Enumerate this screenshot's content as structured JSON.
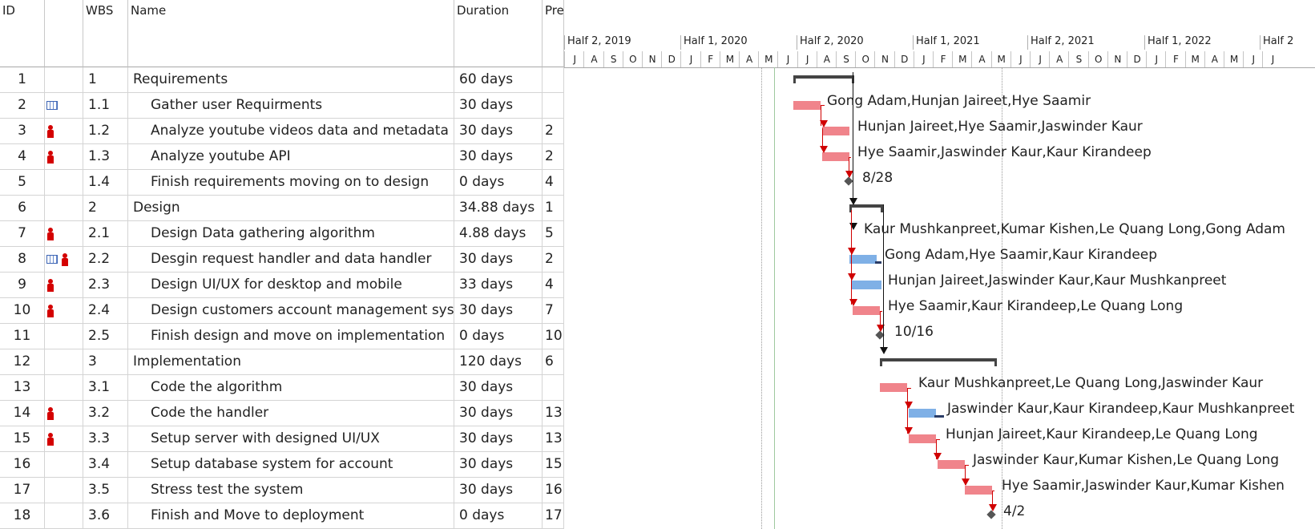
{
  "columns": {
    "id": "ID",
    "wbs": "WBS",
    "name": "Name",
    "duration": "Duration",
    "predecessors": "Pre"
  },
  "info_icon": "i",
  "timeline": {
    "halves": [
      "Half 2, 2019",
      "Half 1, 2020",
      "Half 2, 2020",
      "Half 1, 2021",
      "Half 2, 2021",
      "Half 1, 2022",
      "Half 2"
    ],
    "months": [
      "J",
      "J",
      "A",
      "S",
      "O",
      "N",
      "D",
      "J",
      "F",
      "M",
      "A",
      "M",
      "J",
      "J",
      "A",
      "S",
      "O",
      "N",
      "D",
      "J",
      "F",
      "M",
      "A",
      "M",
      "J",
      "J",
      "A",
      "S",
      "O",
      "N",
      "D",
      "J",
      "F",
      "M",
      "A",
      "M",
      "J",
      "J"
    ]
  },
  "tasks": [
    {
      "id": "1",
      "wbs": "1",
      "name": "Requirements",
      "duration": "60 days",
      "pred": "",
      "summary": true,
      "indicators": []
    },
    {
      "id": "2",
      "wbs": "1.1",
      "name": "Gather user Requirments",
      "duration": "30 days",
      "pred": "",
      "summary": false,
      "indicators": [
        "calendar-icon"
      ]
    },
    {
      "id": "3",
      "wbs": "1.2",
      "name": "Analyze youtube videos data and metadata",
      "duration": "30 days",
      "pred": "2",
      "summary": false,
      "indicators": [
        "resource-icon"
      ]
    },
    {
      "id": "4",
      "wbs": "1.3",
      "name": "Analyze youtube API",
      "duration": "30 days",
      "pred": "2",
      "summary": false,
      "indicators": [
        "resource-icon"
      ]
    },
    {
      "id": "5",
      "wbs": "1.4",
      "name": "Finish requirements moving on to design",
      "duration": "0 days",
      "pred": "4",
      "summary": false,
      "indicators": []
    },
    {
      "id": "6",
      "wbs": "2",
      "name": "Design",
      "duration": "34.88 days",
      "pred": "1",
      "summary": true,
      "indicators": []
    },
    {
      "id": "7",
      "wbs": "2.1",
      "name": "Design Data gathering algorithm",
      "duration": "4.88 days",
      "pred": "5",
      "summary": false,
      "indicators": [
        "resource-icon"
      ]
    },
    {
      "id": "8",
      "wbs": "2.2",
      "name": "Desgin request handler and data handler",
      "duration": "30 days",
      "pred": "2",
      "summary": false,
      "indicators": [
        "calendar-icon",
        "resource-icon"
      ]
    },
    {
      "id": "9",
      "wbs": "2.3",
      "name": "Design UI/UX for desktop and mobile",
      "duration": "33 days",
      "pred": "4",
      "summary": false,
      "indicators": [
        "resource-icon"
      ]
    },
    {
      "id": "10",
      "wbs": "2.4",
      "name": "Design customers account management system",
      "duration": "30 days",
      "pred": "7",
      "summary": false,
      "indicators": [
        "resource-icon"
      ]
    },
    {
      "id": "11",
      "wbs": "2.5",
      "name": "Finish design and move on implementation",
      "duration": "0 days",
      "pred": "10",
      "summary": false,
      "indicators": []
    },
    {
      "id": "12",
      "wbs": "3",
      "name": "Implementation",
      "duration": "120 days",
      "pred": "6",
      "summary": true,
      "indicators": []
    },
    {
      "id": "13",
      "wbs": "3.1",
      "name": "Code the algorithm",
      "duration": "30 days",
      "pred": "",
      "summary": false,
      "indicators": []
    },
    {
      "id": "14",
      "wbs": "3.2",
      "name": "Code the handler",
      "duration": "30 days",
      "pred": "13",
      "summary": false,
      "indicators": [
        "resource-icon"
      ]
    },
    {
      "id": "15",
      "wbs": "3.3",
      "name": "Setup server with designed UI/UX",
      "duration": "30 days",
      "pred": "13",
      "summary": false,
      "indicators": [
        "resource-icon"
      ]
    },
    {
      "id": "16",
      "wbs": "3.4",
      "name": "Setup database system for account",
      "duration": "30 days",
      "pred": "15",
      "summary": false,
      "indicators": []
    },
    {
      "id": "17",
      "wbs": "3.5",
      "name": "Stress test the system",
      "duration": "30 days",
      "pred": "16",
      "summary": false,
      "indicators": []
    },
    {
      "id": "18",
      "wbs": "3.6",
      "name": "Finish and Move to deployment",
      "duration": "0 days",
      "pred": "17",
      "summary": false,
      "indicators": []
    }
  ],
  "gantt_labels": {
    "r2": "Gong Adam,Hunjan Jaireet,Hye Saamir",
    "r3": "Hunjan Jaireet,Hye Saamir,Jaswinder Kaur",
    "r4": "Hye Saamir,Jaswinder Kaur,Kaur Kirandeep",
    "r5": "8/28",
    "r7": "Kaur Mushkanpreet,Kumar Kishen,Le Quang Long,Gong Adam",
    "r8": "Gong Adam,Hye Saamir,Kaur Kirandeep",
    "r9": "Hunjan Jaireet,Jaswinder Kaur,Kaur Mushkanpreet",
    "r10": "Hye Saamir,Kaur Kirandeep,Le Quang Long",
    "r11": "10/16",
    "r13": "Kaur Mushkanpreet,Le Quang Long,Jaswinder Kaur",
    "r14": "Jaswinder Kaur,Kaur Kirandeep,Kaur Mushkanpreet",
    "r15": "Hunjan Jaireet,Kaur Kirandeep,Le Quang Long",
    "r16": "Jaswinder Kaur,Kumar Kishen,Le Quang Long",
    "r17": "Hye Saamir,Jaswinder Kaur,Kumar Kishen",
    "r18": "4/2"
  },
  "colors": {
    "critical": "#f0848b",
    "normal": "#7fb0e6",
    "link": "#d00000",
    "summary": "#444444"
  }
}
